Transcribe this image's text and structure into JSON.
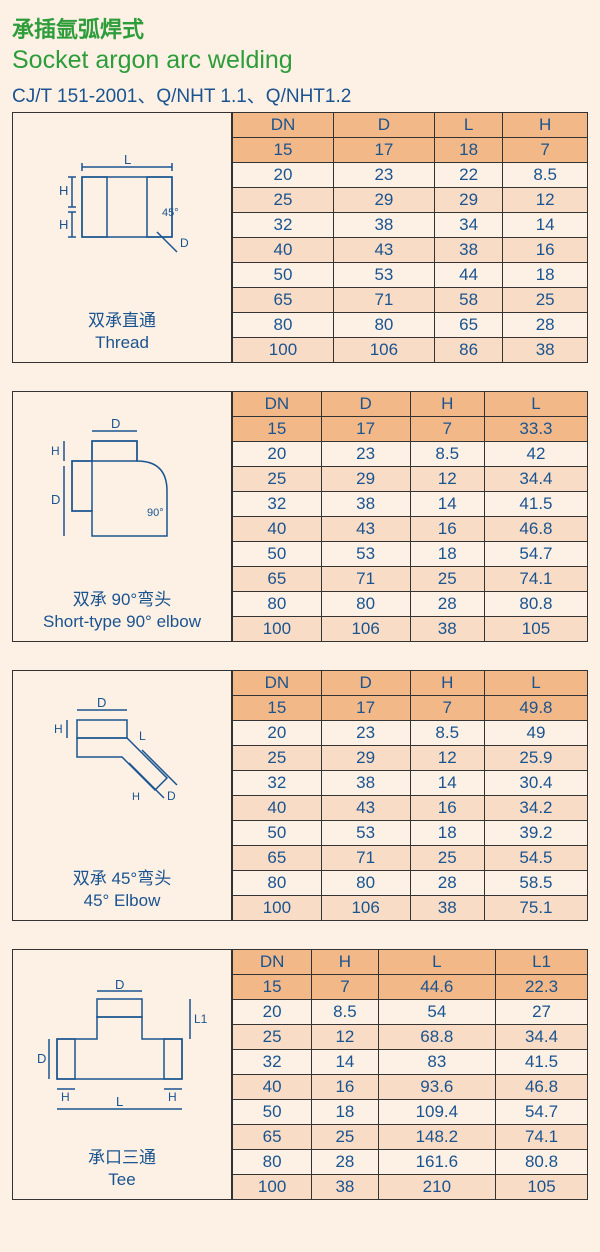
{
  "header": {
    "title_cn": "承插氩弧焊式",
    "title_en": "Socket argon arc welding",
    "standard": "CJ/T 151-2001、Q/NHT 1.1、Q/NHT1.2"
  },
  "sections": [
    {
      "caption_cn": "双承直通",
      "caption_en": "Thread",
      "columns": [
        "DN",
        "D",
        "L",
        "H"
      ],
      "rows": [
        [
          "15",
          "17",
          "18",
          "7"
        ],
        [
          "20",
          "23",
          "22",
          "8.5"
        ],
        [
          "25",
          "29",
          "29",
          "12"
        ],
        [
          "32",
          "38",
          "34",
          "14"
        ],
        [
          "40",
          "43",
          "38",
          "16"
        ],
        [
          "50",
          "53",
          "44",
          "18"
        ],
        [
          "65",
          "71",
          "58",
          "25"
        ],
        [
          "80",
          "80",
          "65",
          "28"
        ],
        [
          "100",
          "106",
          "86",
          "38"
        ]
      ]
    },
    {
      "caption_cn": "双承 90°弯头",
      "caption_en": "Short-type 90° elbow",
      "columns": [
        "DN",
        "D",
        "H",
        "L"
      ],
      "rows": [
        [
          "15",
          "17",
          "7",
          "33.3"
        ],
        [
          "20",
          "23",
          "8.5",
          "42"
        ],
        [
          "25",
          "29",
          "12",
          "34.4"
        ],
        [
          "32",
          "38",
          "14",
          "41.5"
        ],
        [
          "40",
          "43",
          "16",
          "46.8"
        ],
        [
          "50",
          "53",
          "18",
          "54.7"
        ],
        [
          "65",
          "71",
          "25",
          "74.1"
        ],
        [
          "80",
          "80",
          "28",
          "80.8"
        ],
        [
          "100",
          "106",
          "38",
          "105"
        ]
      ]
    },
    {
      "caption_cn": "双承 45°弯头",
      "caption_en": "45° Elbow",
      "columns": [
        "DN",
        "D",
        "H",
        "L"
      ],
      "rows": [
        [
          "15",
          "17",
          "7",
          "49.8"
        ],
        [
          "20",
          "23",
          "8.5",
          "49"
        ],
        [
          "25",
          "29",
          "12",
          "25.9"
        ],
        [
          "32",
          "38",
          "14",
          "30.4"
        ],
        [
          "40",
          "43",
          "16",
          "34.2"
        ],
        [
          "50",
          "53",
          "18",
          "39.2"
        ],
        [
          "65",
          "71",
          "25",
          "54.5"
        ],
        [
          "80",
          "80",
          "28",
          "58.5"
        ],
        [
          "100",
          "106",
          "38",
          "75.1"
        ]
      ]
    },
    {
      "caption_cn": "承口三通",
      "caption_en": "Tee",
      "columns": [
        "DN",
        "H",
        "L",
        "L1"
      ],
      "rows": [
        [
          "15",
          "7",
          "44.6",
          "22.3"
        ],
        [
          "20",
          "8.5",
          "54",
          "27"
        ],
        [
          "25",
          "12",
          "68.8",
          "34.4"
        ],
        [
          "32",
          "14",
          "83",
          "41.5"
        ],
        [
          "40",
          "16",
          "93.6",
          "46.8"
        ],
        [
          "50",
          "18",
          "109.4",
          "54.7"
        ],
        [
          "65",
          "25",
          "148.2",
          "74.1"
        ],
        [
          "80",
          "28",
          "161.6",
          "80.8"
        ],
        [
          "100",
          "38",
          "210",
          "105"
        ]
      ]
    }
  ],
  "style": {
    "header_bg": "#f3b887",
    "shade_bg": "#f9dcc5",
    "page_bg": "#fdf0e5",
    "text_color": "#1a5490",
    "title_color": "#2d9d3a"
  }
}
